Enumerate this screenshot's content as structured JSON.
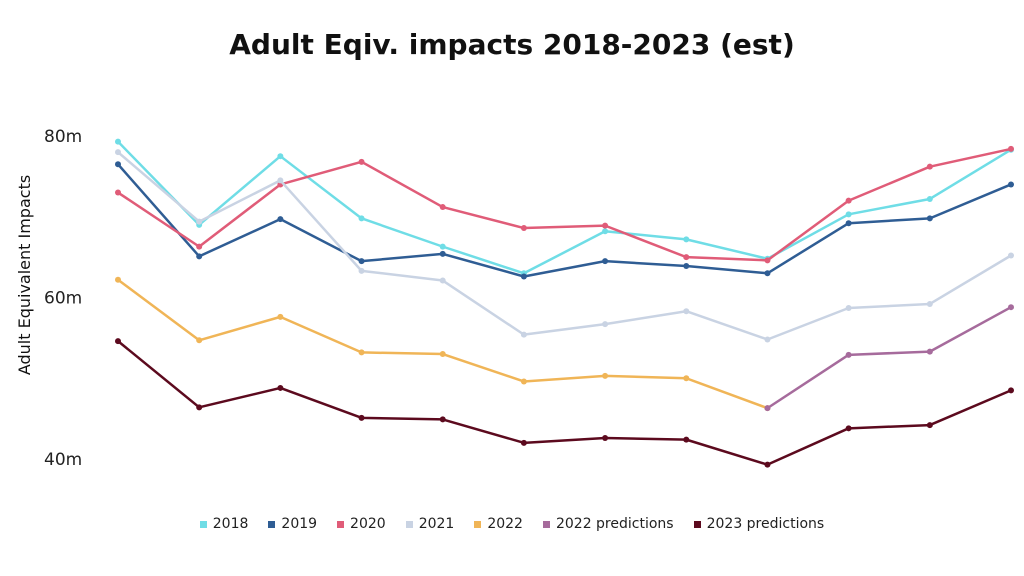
{
  "chart_data": {
    "type": "line",
    "title": "Adult Eqiv. impacts 2018-2023 (est)",
    "ylabel": "Adult Equivalent Impacts",
    "xlabel": "",
    "ylim": [
      40,
      80
    ],
    "yticks": [
      {
        "value": 40,
        "label": "40m"
      },
      {
        "value": 60,
        "label": "60m"
      },
      {
        "value": 80,
        "label": "80m"
      }
    ],
    "x_count": 12,
    "grid": false,
    "legend_position": "bottom",
    "series": [
      {
        "name": "2018",
        "color": "#6fdde6",
        "values": [
          79.3,
          69.0,
          77.5,
          69.8,
          66.3,
          63.0,
          68.2,
          67.2,
          64.8,
          70.3,
          72.2,
          78.3
        ]
      },
      {
        "name": "2019",
        "color": "#2f5d94",
        "values": [
          76.5,
          65.1,
          69.7,
          64.5,
          65.4,
          62.6,
          64.5,
          63.9,
          63.0,
          69.2,
          69.8,
          74.0
        ]
      },
      {
        "name": "2020",
        "color": "#e05c78",
        "values": [
          73.0,
          66.3,
          74.0,
          76.8,
          71.2,
          68.6,
          68.9,
          65.0,
          64.6,
          72.0,
          76.2,
          78.4
        ]
      },
      {
        "name": "2021",
        "color": "#c9d3e3",
        "values": [
          78.0,
          69.4,
          74.5,
          63.3,
          62.1,
          55.4,
          56.7,
          58.3,
          54.8,
          58.7,
          59.2,
          65.2
        ]
      },
      {
        "name": "2022",
        "color": "#f0b557",
        "values": [
          62.2,
          54.7,
          57.6,
          53.2,
          53.0,
          49.6,
          50.3,
          50.0,
          46.3
        ]
      },
      {
        "name": "2022 predictions",
        "color": "#a66b9c",
        "values": [
          null,
          null,
          null,
          null,
          null,
          null,
          null,
          null,
          46.3,
          52.9,
          53.3,
          58.8
        ]
      },
      {
        "name": "2023 predictions",
        "color": "#5c0a1e",
        "values": [
          54.6,
          46.4,
          48.8,
          45.1,
          44.9,
          42.0,
          42.6,
          42.4,
          39.3,
          43.8,
          44.2,
          48.5
        ]
      }
    ]
  }
}
